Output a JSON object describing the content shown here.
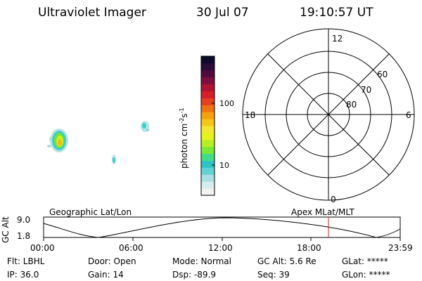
{
  "header": {
    "title": "Ultraviolet Imager",
    "date": "30 Jul 07",
    "time": "19:10:57 UT"
  },
  "colorbar": {
    "label": "photon cm",
    "label_sup1": "-2",
    "label_s": "s",
    "label_sup2": "-1",
    "tick_100": "100",
    "tick_10": "10",
    "colors": [
      "#f2f2f2",
      "#d7ecef",
      "#a9dfe3",
      "#64d2d2",
      "#2ec4c4",
      "#3fdc8a",
      "#7ce63b",
      "#b8ee22",
      "#e4f21e",
      "#f2e830",
      "#f5c51c",
      "#f5a00f",
      "#ef7212",
      "#e64023",
      "#d51e2a",
      "#b01236",
      "#7e0f3f",
      "#4f0c3c",
      "#2b0b38",
      "#0e0b2a"
    ]
  },
  "polar": {
    "label_12": "12",
    "label_18": "18",
    "label_6": "6",
    "label_0": "0",
    "label_60": "60",
    "label_70": "70",
    "label_80": "80"
  },
  "orbit": {
    "left_title": "Geographic Lat/Lon",
    "right_title": "Apex MLat/MLT",
    "y_axis_label": "GC Alt",
    "y_top": "9.0",
    "y_bottom": "1.8",
    "x_ticks": [
      "00:00",
      "06:00",
      "12:00",
      "18:00",
      "23:59"
    ],
    "marker_color": "#cc2222"
  },
  "footer": {
    "flt": "Flt: LBHL",
    "door": "Door: Open",
    "mode": "Mode: Normal",
    "gc_alt": "GC Alt: 5.6 Re",
    "glat": "GLat: *****",
    "ip": "IP: 36.0",
    "gain": "Gain: 14",
    "dsp": "Dsp:  -89.9",
    "seq": "Seq: 39",
    "glon": "GLon: *****"
  }
}
